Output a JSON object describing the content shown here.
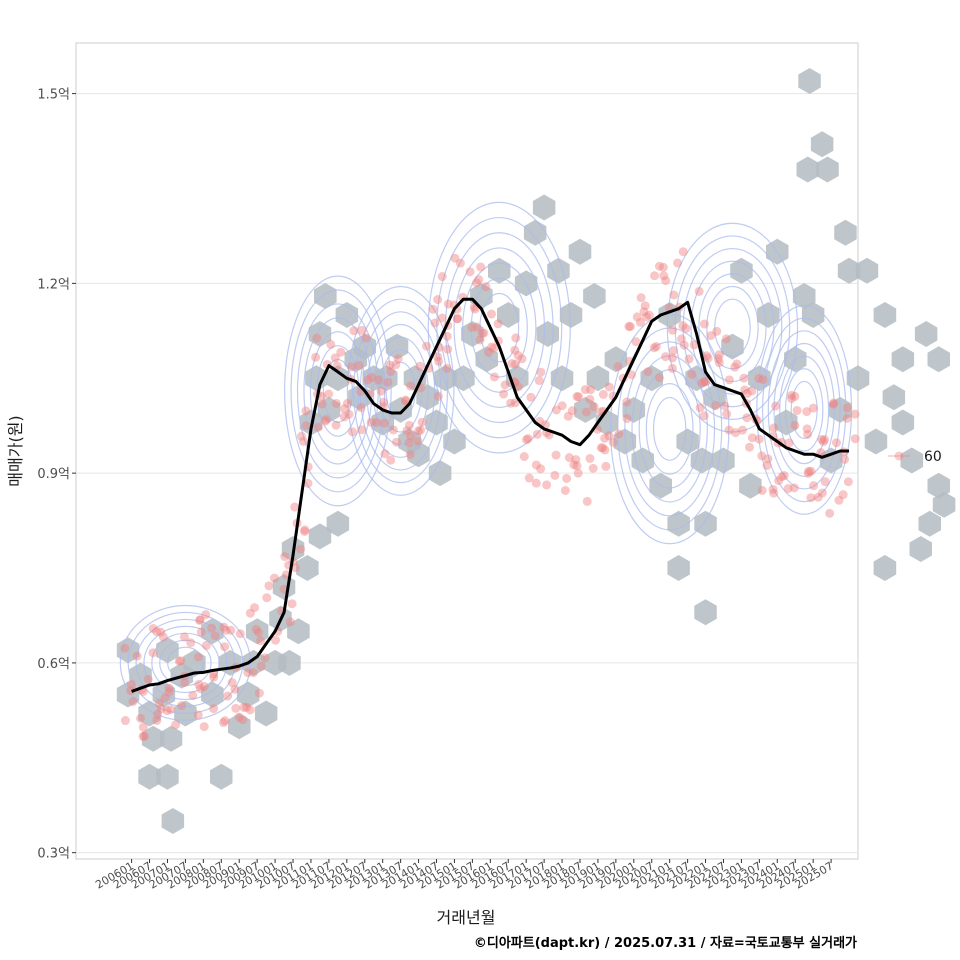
{
  "chart_data": {
    "type": "scatter",
    "xlabel": "거래년월",
    "ylabel": "매매가(원)",
    "caption": "©디아파트(dapt.kr) / 2025.07.31 / 자료=국토교통부 실거래가",
    "x_ticks": [
      "200601",
      "200607",
      "200701",
      "200707",
      "200801",
      "200807",
      "200901",
      "200907",
      "201001",
      "201007",
      "201101",
      "201107",
      "201201",
      "201207",
      "201301",
      "201307",
      "201401",
      "201407",
      "201501",
      "201507",
      "201601",
      "201607",
      "201701",
      "201707",
      "201801",
      "201807",
      "201901",
      "201907",
      "202001",
      "202007",
      "202101",
      "202107",
      "202201",
      "202207",
      "202301",
      "202307",
      "202401",
      "202407",
      "202501",
      "202507"
    ],
    "y_ticks": [
      {
        "value": 0.3,
        "label": "0.3억"
      },
      {
        "value": 0.6,
        "label": "0.6억"
      },
      {
        "value": 0.9,
        "label": "0.9억"
      },
      {
        "value": 1.2,
        "label": "1.2억"
      },
      {
        "value": 1.5,
        "label": "1.5억"
      }
    ],
    "ylim": [
      0.29,
      1.58
    ],
    "xlim": [
      -3.1,
      40.5
    ],
    "grid": true,
    "legend": {
      "position": "right",
      "label": "60",
      "color": "#f08080"
    },
    "colors": {
      "hexbin": "#b4bcc2",
      "points": "#f08080",
      "density": "#aabbee",
      "trend": "#000000",
      "panel_border": "#cccccc",
      "grid": "#e6e6e6"
    },
    "trend_series": {
      "name": "",
      "x": [
        0,
        0.5,
        1,
        1.5,
        2,
        2.5,
        3,
        3.5,
        4,
        4.5,
        5,
        5.5,
        6,
        6.5,
        7,
        7.5,
        8,
        8.5,
        9,
        9.5,
        10,
        10.5,
        11,
        11.5,
        12,
        12.5,
        13,
        13.5,
        14,
        14.5,
        15,
        15.5,
        16,
        16.5,
        17,
        17.5,
        18,
        18.5,
        19,
        19.5,
        20,
        20.5,
        21,
        21.5,
        22,
        22.5,
        23,
        23.5,
        24,
        24.5,
        25,
        25.5,
        26,
        26.5,
        27,
        27.5,
        28,
        28.5,
        29,
        29.5,
        30,
        30.5,
        31,
        31.5,
        32,
        32.5,
        33,
        33.5,
        34,
        34.5,
        35,
        35.5,
        36,
        36.5,
        37,
        37.5,
        38,
        38.5,
        39,
        39.5,
        40
      ],
      "y": [
        0.555,
        0.56,
        0.565,
        0.567,
        0.572,
        0.576,
        0.58,
        0.584,
        0.585,
        0.588,
        0.59,
        0.592,
        0.595,
        0.6,
        0.61,
        0.63,
        0.65,
        0.68,
        0.77,
        0.87,
        0.97,
        1.04,
        1.07,
        1.06,
        1.05,
        1.045,
        1.03,
        1.01,
        1.0,
        0.995,
        0.995,
        1.01,
        1.04,
        1.07,
        1.1,
        1.13,
        1.16,
        1.175,
        1.175,
        1.16,
        1.13,
        1.1,
        1.06,
        1.02,
        1.0,
        0.98,
        0.97,
        0.965,
        0.96,
        0.95,
        0.945,
        0.96,
        0.98,
        1.0,
        1.02,
        1.05,
        1.08,
        1.11,
        1.14,
        1.15,
        1.155,
        1.16,
        1.17,
        1.12,
        1.06,
        1.04,
        1.035,
        1.03,
        1.025,
        1.0,
        0.97,
        0.96,
        0.95,
        0.94,
        0.935,
        0.93,
        0.93,
        0.925,
        0.93,
        0.935,
        0.935
      ]
    },
    "density_centers": [
      {
        "x": 3.0,
        "y": 0.6,
        "sx": 2.2,
        "sy": 0.055
      },
      {
        "x": 11.5,
        "y": 1.03,
        "sx": 1.8,
        "sy": 0.11
      },
      {
        "x": 15.0,
        "y": 1.03,
        "sx": 1.8,
        "sy": 0.1
      },
      {
        "x": 20.5,
        "y": 1.13,
        "sx": 2.4,
        "sy": 0.12
      },
      {
        "x": 30.0,
        "y": 0.97,
        "sx": 2.0,
        "sy": 0.11
      },
      {
        "x": 33.5,
        "y": 1.13,
        "sx": 2.2,
        "sy": 0.1
      },
      {
        "x": 37.5,
        "y": 1.0,
        "sx": 1.6,
        "sy": 0.1
      }
    ],
    "hexbins": [
      [
        -0.2,
        0.62
      ],
      [
        -0.2,
        0.55
      ],
      [
        0.5,
        0.58
      ],
      [
        1.0,
        0.52
      ],
      [
        1.2,
        0.48
      ],
      [
        1.0,
        0.42
      ],
      [
        2.0,
        0.42
      ],
      [
        2.3,
        0.35
      ],
      [
        2.2,
        0.48
      ],
      [
        1.8,
        0.55
      ],
      [
        2.0,
        0.62
      ],
      [
        2.8,
        0.58
      ],
      [
        3.0,
        0.52
      ],
      [
        3.5,
        0.6
      ],
      [
        4.5,
        0.65
      ],
      [
        4.5,
        0.55
      ],
      [
        5.0,
        0.42
      ],
      [
        5.5,
        0.6
      ],
      [
        6.0,
        0.5
      ],
      [
        6.5,
        0.55
      ],
      [
        6.8,
        0.6
      ],
      [
        7.0,
        0.65
      ],
      [
        7.5,
        0.52
      ],
      [
        8.0,
        0.6
      ],
      [
        8.3,
        0.67
      ],
      [
        8.5,
        0.72
      ],
      [
        8.8,
        0.6
      ],
      [
        9.0,
        0.78
      ],
      [
        9.3,
        0.65
      ],
      [
        9.8,
        0.75
      ],
      [
        10.5,
        0.8
      ],
      [
        11.5,
        0.82
      ],
      [
        10.0,
        0.98
      ],
      [
        10.3,
        1.05
      ],
      [
        10.5,
        1.12
      ],
      [
        10.8,
        1.18
      ],
      [
        11.5,
        1.05
      ],
      [
        11.0,
        1.0
      ],
      [
        12.0,
        1.15
      ],
      [
        12.5,
        1.08
      ],
      [
        12.7,
        1.02
      ],
      [
        13.0,
        1.1
      ],
      [
        13.5,
        1.05
      ],
      [
        14.0,
        0.98
      ],
      [
        14.2,
        1.05
      ],
      [
        14.8,
        1.1
      ],
      [
        15.0,
        1.0
      ],
      [
        15.5,
        0.95
      ],
      [
        15.8,
        1.05
      ],
      [
        16.5,
        1.02
      ],
      [
        16.0,
        0.93
      ],
      [
        17.0,
        0.98
      ],
      [
        17.5,
        1.05
      ],
      [
        17.2,
        0.9
      ],
      [
        18.0,
        0.95
      ],
      [
        18.5,
        1.05
      ],
      [
        19.0,
        1.12
      ],
      [
        19.5,
        1.18
      ],
      [
        19.8,
        1.08
      ],
      [
        20.5,
        1.22
      ],
      [
        21.0,
        1.15
      ],
      [
        21.5,
        1.05
      ],
      [
        22.0,
        1.2
      ],
      [
        22.5,
        1.28
      ],
      [
        23.0,
        1.32
      ],
      [
        23.2,
        1.12
      ],
      [
        23.8,
        1.22
      ],
      [
        24.0,
        1.05
      ],
      [
        24.5,
        1.15
      ],
      [
        25.0,
        1.25
      ],
      [
        25.3,
        1.0
      ],
      [
        25.8,
        1.18
      ],
      [
        26.0,
        1.05
      ],
      [
        26.5,
        0.98
      ],
      [
        27.0,
        1.08
      ],
      [
        27.5,
        0.95
      ],
      [
        28.0,
        1.0
      ],
      [
        28.5,
        0.92
      ],
      [
        29.0,
        1.05
      ],
      [
        29.5,
        0.88
      ],
      [
        30.0,
        1.15
      ],
      [
        30.5,
        0.82
      ],
      [
        30.5,
        0.75
      ],
      [
        31.0,
        0.95
      ],
      [
        31.5,
        1.05
      ],
      [
        31.8,
        0.92
      ],
      [
        32.0,
        0.82
      ],
      [
        32.0,
        0.68
      ],
      [
        32.5,
        1.02
      ],
      [
        33.0,
        0.92
      ],
      [
        33.5,
        1.1
      ],
      [
        34.0,
        1.22
      ],
      [
        34.5,
        0.88
      ],
      [
        35.0,
        1.05
      ],
      [
        35.5,
        1.15
      ],
      [
        36.0,
        1.25
      ],
      [
        36.5,
        0.98
      ],
      [
        37.0,
        1.08
      ],
      [
        37.5,
        1.18
      ],
      [
        38.0,
        1.15
      ],
      [
        37.8,
        1.52
      ],
      [
        37.7,
        1.38
      ],
      [
        38.5,
        1.42
      ],
      [
        38.8,
        1.38
      ],
      [
        39.0,
        0.92
      ],
      [
        39.5,
        1.0
      ],
      [
        39.8,
        1.28
      ],
      [
        40.0,
        1.22
      ],
      [
        40.5,
        1.05
      ],
      [
        41.0,
        1.22
      ],
      [
        41.5,
        0.95
      ],
      [
        42.0,
        1.15
      ],
      [
        42.5,
        1.02
      ],
      [
        42.0,
        0.75
      ],
      [
        43.0,
        1.08
      ],
      [
        43.0,
        0.98
      ],
      [
        43.5,
        0.92
      ],
      [
        44.0,
        0.78
      ],
      [
        44.3,
        1.12
      ],
      [
        44.5,
        0.82
      ],
      [
        45.0,
        1.08
      ],
      [
        45.0,
        0.88
      ],
      [
        45.3,
        0.85
      ]
    ],
    "points_seed": 7
  }
}
